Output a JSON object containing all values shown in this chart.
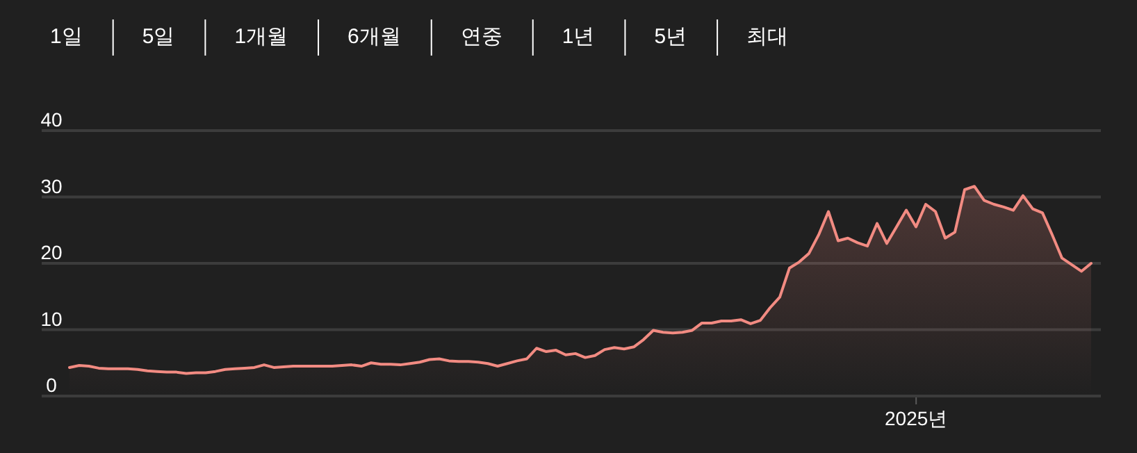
{
  "chart_data": {
    "type": "area",
    "annotations": [
      "1일",
      "5일",
      "1개월",
      "6개월",
      "연중",
      "1년",
      "5년",
      "최대",
      "2025년"
    ],
    "ylim": [
      0,
      40
    ],
    "yticks": [
      0,
      10,
      20,
      30,
      40
    ],
    "grid": "y",
    "categories": [
      null,
      null,
      null,
      null,
      null,
      null,
      null,
      null,
      null,
      null,
      null,
      null,
      null,
      null,
      null,
      null,
      null,
      null,
      null,
      null,
      null,
      null,
      null,
      null,
      null,
      null,
      null,
      null,
      null,
      null,
      null,
      null,
      null,
      null,
      null,
      null,
      null,
      null,
      null,
      null,
      null,
      null,
      null,
      null,
      null,
      null,
      null,
      null,
      null,
      null,
      null,
      null,
      null,
      null,
      null,
      null,
      null,
      null,
      null,
      null,
      null,
      null,
      null,
      null,
      null,
      null,
      null,
      null,
      null,
      null,
      null,
      null,
      null,
      null,
      null,
      null,
      null,
      null,
      null,
      null,
      null,
      null,
      null,
      null,
      null,
      null,
      null,
      null,
      null,
      null,
      null,
      null,
      null,
      null,
      null,
      null,
      null,
      null,
      null,
      null,
      null,
      null,
      null,
      null,
      null,
      null
    ],
    "series": [
      {
        "color": "#f28b82",
        "values": [
          4.3,
          4.6,
          4.5,
          4.2,
          4.1,
          4.1,
          4.1,
          4.0,
          3.8,
          3.7,
          3.6,
          3.6,
          3.4,
          3.5,
          3.5,
          3.7,
          4.0,
          4.1,
          4.2,
          4.3,
          4.7,
          4.3,
          4.4,
          4.5,
          4.5,
          4.5,
          4.5,
          4.5,
          4.6,
          4.7,
          4.5,
          5.0,
          4.8,
          4.8,
          4.7,
          4.9,
          5.1,
          5.5,
          5.6,
          5.3,
          5.2,
          5.2,
          5.1,
          4.9,
          4.5,
          4.9,
          5.3,
          5.6,
          7.2,
          6.7,
          6.9,
          6.2,
          6.4,
          5.8,
          6.1,
          7.0,
          7.3,
          7.1,
          7.4,
          8.5,
          9.9,
          9.6,
          9.5,
          9.6,
          9.9,
          11.0,
          11.0,
          11.3,
          11.3,
          11.5,
          10.9,
          11.4,
          13.3,
          14.9,
          19.3,
          20.2,
          21.5,
          24.3,
          27.8,
          23.4,
          23.8,
          23.1,
          22.6,
          26.0,
          23.0,
          25.5,
          28.0,
          25.5,
          28.9,
          27.8,
          23.8,
          24.7,
          31.1,
          31.6,
          29.5,
          28.9,
          28.5,
          28.0,
          30.2,
          28.2,
          27.6,
          24.3,
          20.8,
          19.8,
          18.8,
          20.0
        ]
      }
    ]
  }
}
